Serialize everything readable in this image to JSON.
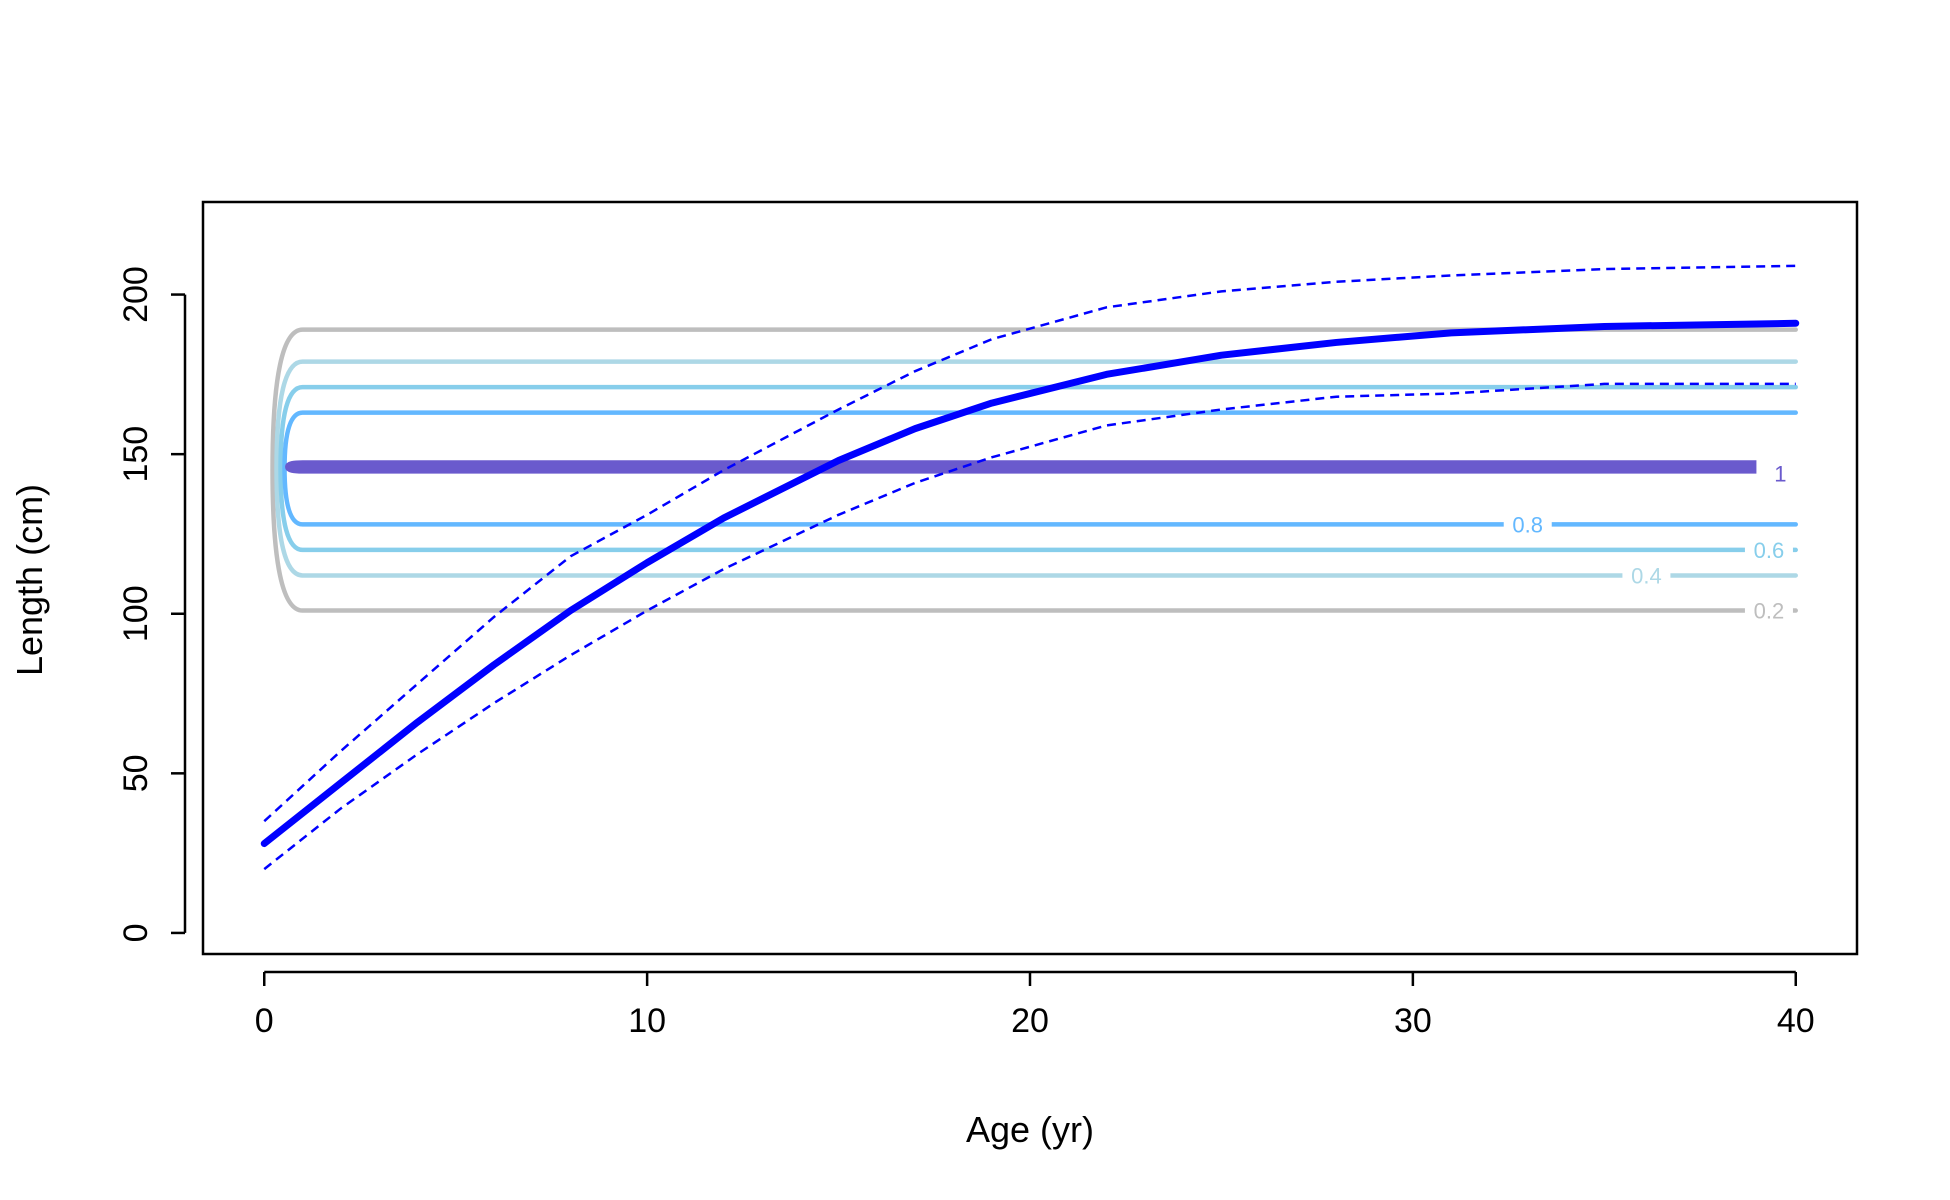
{
  "chart_data": {
    "type": "line",
    "title": "",
    "xlabel": "Age (yr)",
    "ylabel": "Length (cm)",
    "xlim": [
      -1.6,
      41.6
    ],
    "ylim": [
      -6.6,
      229
    ],
    "xticks": [
      0,
      10,
      20,
      30,
      40
    ],
    "xtick_labels": [
      "0",
      "10",
      "20",
      "30",
      "40"
    ],
    "yticks": [
      0,
      50,
      100,
      150,
      200
    ],
    "ytick_labels": [
      "0",
      "50",
      "100",
      "150",
      "200"
    ],
    "grid": false,
    "legend": "none",
    "growth_curve": {
      "color": "#0000FF",
      "x": [
        0,
        2,
        4,
        6,
        8,
        10,
        12,
        15,
        17,
        19,
        22,
        25,
        28,
        31,
        35,
        40
      ],
      "mean": [
        28,
        47,
        66,
        84,
        101,
        116,
        130,
        148,
        158,
        166,
        175,
        181,
        185,
        188,
        190,
        191
      ],
      "upper": [
        35,
        57,
        78,
        99,
        118,
        131,
        145,
        164,
        176,
        186,
        196,
        201,
        204,
        206,
        208,
        209
      ],
      "lower": [
        20,
        39,
        56,
        72,
        87,
        101,
        114,
        131,
        141,
        149,
        159,
        164,
        168,
        169,
        172,
        172
      ]
    },
    "contours": [
      {
        "level": "0.2",
        "color": "#BEBEBE",
        "y_low": 101,
        "y_high": 189,
        "x_start": 1,
        "x_end": 40,
        "label_x": 39.3,
        "label_y": 101
      },
      {
        "level": "0.4",
        "color": "#ADD8E6",
        "y_low": 112,
        "y_high": 179,
        "x_start": 1,
        "x_end": 40,
        "label_x": 36.1,
        "label_y": 112
      },
      {
        "level": "0.6",
        "color": "#87CEEB",
        "y_low": 120,
        "y_high": 171,
        "x_start": 1,
        "x_end": 40,
        "label_x": 39.3,
        "label_y": 120
      },
      {
        "level": "0.8",
        "color": "#63B8FF",
        "y_low": 128,
        "y_high": 163,
        "x_start": 1,
        "x_end": 40,
        "label_x": 33.0,
        "label_y": 128
      },
      {
        "level": "1",
        "color": "#6A5ACD",
        "y_low": 145,
        "y_high": 147,
        "x_start": 1,
        "x_end": 40,
        "label_x": 39.6,
        "label_y": 144
      }
    ]
  }
}
